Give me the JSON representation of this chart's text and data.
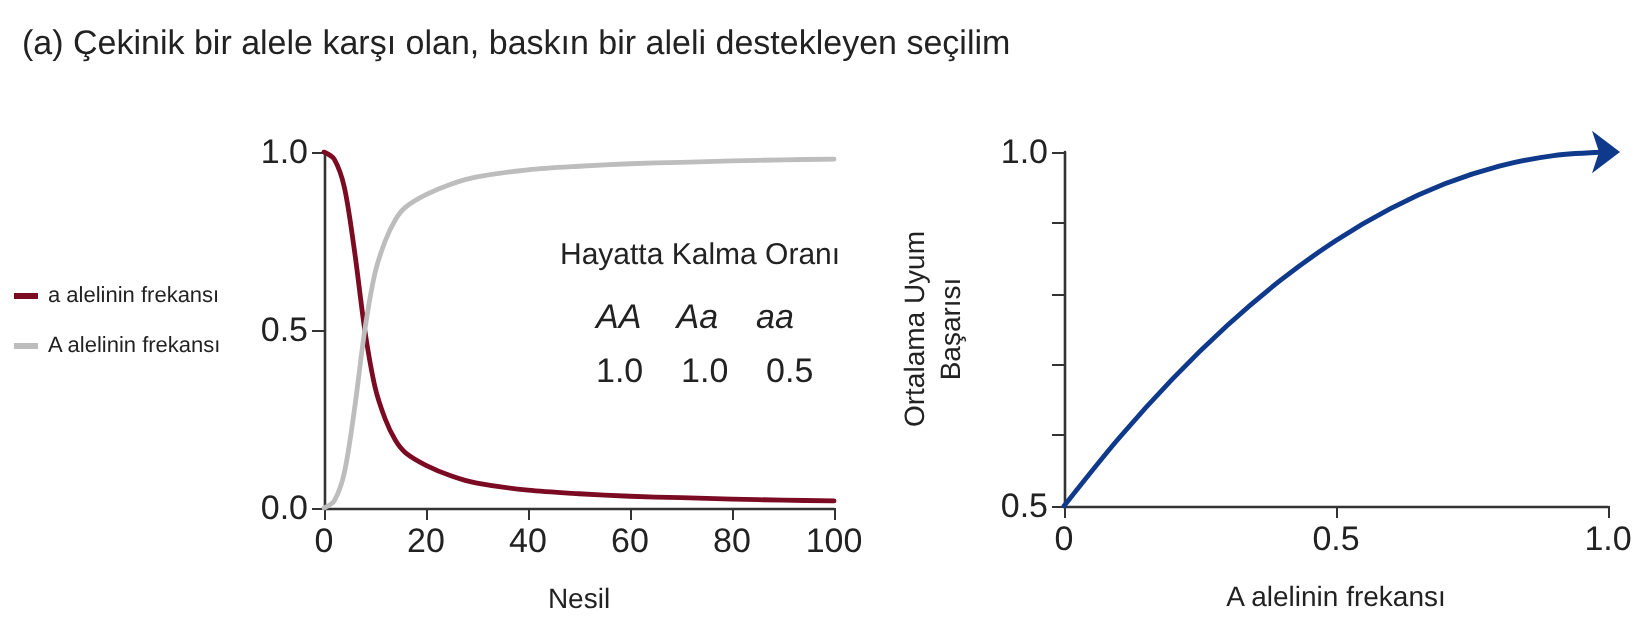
{
  "chart_data": [
    {
      "type": "line",
      "title": "(a) Çekinik bir alele karşı olan, baskın bir aleli destekleyen seçilim",
      "xlabel": "Nesil",
      "x": [
        0,
        2,
        4,
        6,
        8,
        10,
        12,
        14,
        16,
        20,
        25,
        30,
        40,
        50,
        60,
        70,
        80,
        90,
        100
      ],
      "series": [
        {
          "name": "a alelinin frekansı",
          "color": "#7b0b22",
          "values": [
            1.0,
            0.98,
            0.9,
            0.72,
            0.5,
            0.34,
            0.25,
            0.19,
            0.155,
            0.12,
            0.09,
            0.07,
            0.05,
            0.04,
            0.033,
            0.029,
            0.025,
            0.022,
            0.02
          ]
        },
        {
          "name": "A alelinin frekansı",
          "color": "#bdbdbd",
          "values": [
            0.0,
            0.02,
            0.1,
            0.28,
            0.5,
            0.66,
            0.75,
            0.81,
            0.845,
            0.88,
            0.91,
            0.93,
            0.95,
            0.96,
            0.967,
            0.971,
            0.975,
            0.978,
            0.98
          ]
        }
      ],
      "xlim": [
        0,
        100
      ],
      "xticks": [
        0,
        20,
        40,
        60,
        80,
        100
      ],
      "ylim": [
        0,
        1
      ],
      "yticks": [
        {
          "value": 0,
          "label": "0.0"
        },
        {
          "value": 0.5,
          "label": "0.5"
        },
        {
          "value": 1,
          "label": "1.0"
        }
      ],
      "annotations": [
        "Hayatta Kalma Oranı",
        "AA    Aa    aa",
        "1.0    1.0    0.5"
      ],
      "legend": "left",
      "grid": false,
      "line_style": "solid"
    },
    {
      "type": "line",
      "xlabel": "A alelinin frekansı",
      "ylabel": "Ortalama Uyum Başarısı",
      "x": [
        0,
        0.1,
        0.2,
        0.3,
        0.4,
        0.5,
        0.6,
        0.7,
        0.8,
        0.9,
        1.0
      ],
      "series": [
        {
          "color": "#0f3a8c",
          "values": [
            0.5,
            0.595,
            0.68,
            0.755,
            0.82,
            0.875,
            0.92,
            0.955,
            0.98,
            0.995,
            1.0
          ]
        }
      ],
      "xlim": [
        0,
        1
      ],
      "xticks": [
        0,
        0.5,
        {
          "value": 1,
          "label": "1.0"
        }
      ],
      "ylim": [
        0.5,
        1
      ],
      "yticks": [
        0.5,
        {
          "value": 0.6,
          "label": null
        },
        {
          "value": 0.7,
          "label": null
        },
        {
          "value": 0.8,
          "label": null
        },
        {
          "value": 0.9,
          "label": null
        },
        {
          "value": 1,
          "label": "1.0"
        }
      ],
      "grid": false,
      "line_style": "solid"
    }
  ]
}
